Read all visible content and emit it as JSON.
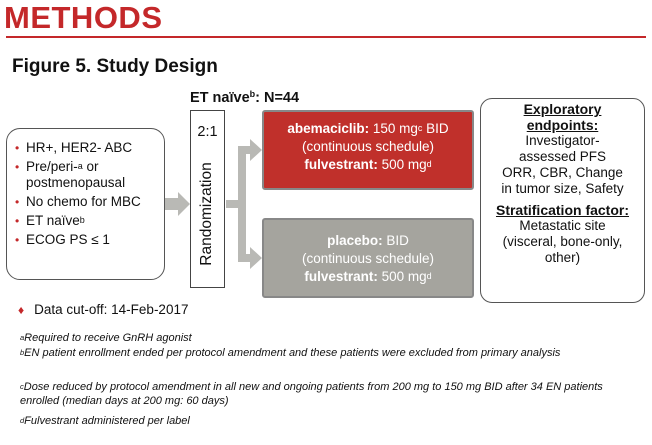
{
  "header": {
    "section_title": "METHODS",
    "figure_title": "Figure 5. Study Design"
  },
  "cohort": {
    "label": "ET naïve",
    "label_sup": "b",
    "count": ": N=44"
  },
  "criteria": [
    {
      "text": "HR+, HER2- ABC",
      "sup": "",
      "text2": ""
    },
    {
      "text": "Pre/peri-",
      "sup": "a",
      "text2": " or postmenopausal"
    },
    {
      "text": "No chemo for MBC",
      "sup": "",
      "text2": ""
    },
    {
      "text": "ET naïve",
      "sup": "b",
      "text2": ""
    },
    {
      "text": "ECOG PS ≤ 1",
      "sup": "",
      "text2": ""
    }
  ],
  "randomization": {
    "ratio": "2:1",
    "label": "Randomization"
  },
  "arms": {
    "abemaciclib": {
      "drug": "abemaciclib:",
      "dose": " 150 mg",
      "dose_sup": "c",
      "freq": " BID",
      "schedule": "(continuous schedule)",
      "combo": "fulvestrant:",
      "combo_dose": " 500 mg",
      "combo_sup": "d"
    },
    "placebo": {
      "drug": "placebo:",
      "freq": " BID",
      "schedule": "(continuous schedule)",
      "combo": "fulvestrant:",
      "combo_dose": " 500 mg",
      "combo_sup": "d"
    }
  },
  "endpoints": {
    "exploratory_heading_1": "Exploratory",
    "exploratory_heading_2": "endpoints:",
    "lines": [
      "Investigator-",
      "assessed PFS",
      "ORR, CBR, Change",
      "in tumor size, Safety"
    ],
    "stratification_heading": "Stratification factor:",
    "strat_lines": [
      "Metastatic site",
      "(visceral, bone-only,",
      "other)"
    ]
  },
  "cutoff": {
    "text": "Data cut-off: 14-Feb-2017"
  },
  "footnotes": [
    {
      "sup": "a",
      "text": "Required to receive GnRH agonist"
    },
    {
      "sup": "b",
      "text": "EN patient enrollment ended per protocol amendment and these patients were excluded from primary analysis"
    },
    {
      "sup": "c",
      "text": "Dose reduced by protocol amendment in all new and ongoing patients from 200 mg to 150 mg BID after 34 EN patients enrolled (median days at 200 mg: 60 days)"
    },
    {
      "sup": "d",
      "text": "Fulvestrant administered per label"
    }
  ],
  "colors": {
    "accent_red": "#c4282a",
    "arm_red": "#c0302b",
    "arm_gray": "#a5a49e",
    "arrow_gray": "#b9b9b5"
  }
}
